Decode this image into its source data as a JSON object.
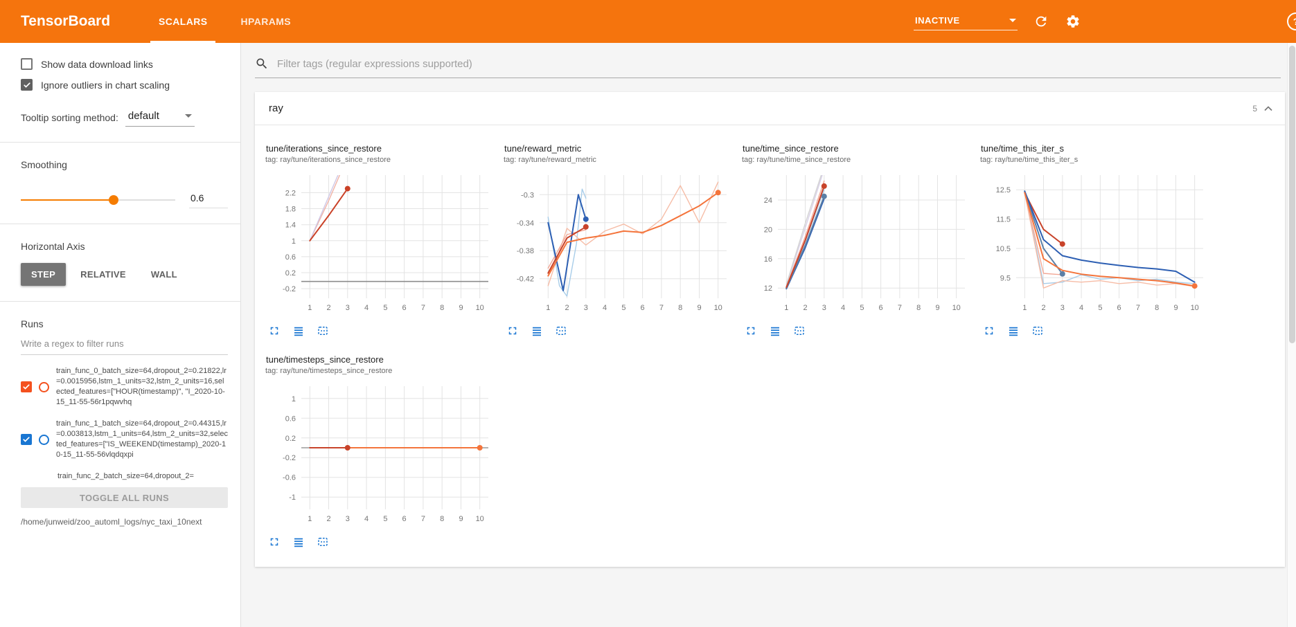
{
  "colors": {
    "header_orange": "#f5740d",
    "accent_blue": "#1976d2",
    "slider_orange": "#f57c00"
  },
  "header": {
    "title": "TensorBoard",
    "tabs": [
      {
        "label": "SCALARS",
        "active": true
      },
      {
        "label": "HPARAMS",
        "active": false
      }
    ],
    "reload_mode": "INACTIVE",
    "help_glyph": "?"
  },
  "sidebar": {
    "show_download_links": {
      "label": "Show data download links",
      "checked": false
    },
    "ignore_outliers": {
      "label": "Ignore outliers in chart scaling",
      "checked": true
    },
    "tooltip_sorting": {
      "label": "Tooltip sorting method:",
      "value": "default"
    },
    "smoothing": {
      "label": "Smoothing",
      "value": "0.6",
      "percent": 60
    },
    "horizontal_axis": {
      "label": "Horizontal Axis",
      "options": [
        {
          "label": "STEP",
          "selected": true
        },
        {
          "label": "RELATIVE",
          "selected": false
        },
        {
          "label": "WALL",
          "selected": false
        }
      ]
    },
    "runs": {
      "label": "Runs",
      "filter_placeholder": "Write a regex to filter runs",
      "items": [
        {
          "label": "train_func_0_batch_size=64,dropout_2=0.21822,lr=0.0015956,lstm_1_units=32,lstm_2_units=16,selected_features=[\"HOUR(timestamp)\", \"I_2020-10-15_11-55-56r1pqwvhq",
          "checked": true,
          "color": "#f4511e",
          "partial": false
        },
        {
          "label": "train_func_1_batch_size=64,dropout_2=0.44315,lr=0.003813,lstm_1_units=64,lstm_2_units=32,selected_features=[\"IS_WEEKEND(timestamp)_2020-10-15_11-55-56vlqdqxpi",
          "checked": true,
          "color": "#1976d2",
          "partial": false
        },
        {
          "label": "train_func_2_batch_size=64,dropout_2=",
          "checked": false,
          "color": "#9e9e9e",
          "partial": true
        }
      ],
      "toggle_all_label": "TOGGLE ALL RUNS",
      "log_dir": "/home/junweid/zoo_automl_logs/nyc_taxi_10next"
    }
  },
  "main": {
    "filter_placeholder": "Filter tags (regular expressions supported)",
    "group": {
      "name": "ray",
      "count": "5"
    }
  },
  "chart_data": [
    {
      "type": "line",
      "title": "tune/iterations_since_restore",
      "tag": "tag: ray/tune/iterations_since_restore",
      "xlim": [
        0.55,
        10.45
      ],
      "ylim": [
        -0.44,
        2.64
      ],
      "xticks": [
        1,
        2,
        3,
        4,
        5,
        6,
        7,
        8,
        9,
        10
      ],
      "yticks": [
        -0.2,
        0.2,
        0.6,
        1,
        1.4,
        1.8,
        2.2
      ],
      "series": [
        {
          "name": "flat-gray-run",
          "color": "#8c8c8c",
          "width": 1.6,
          "points": [
            [
              0.55,
              -0.02
            ],
            [
              10.45,
              -0.02
            ]
          ]
        },
        {
          "name": "raw-red",
          "color": "#f0b3a6",
          "width": 1.4,
          "points": [
            [
              1,
              1
            ],
            [
              2,
              2
            ],
            [
              3,
              3.1
            ]
          ]
        },
        {
          "name": "raw-lavender",
          "color": "#cfc8e6",
          "width": 1.4,
          "points": [
            [
              1,
              1
            ],
            [
              2,
              2.1
            ],
            [
              3,
              3.2
            ]
          ]
        },
        {
          "name": "smoothed-red",
          "color": "#ca4127",
          "width": 2,
          "points": [
            [
              1,
              1
            ],
            [
              2,
              1.63
            ],
            [
              3,
              2.3
            ]
          ],
          "dot": true
        }
      ]
    },
    {
      "type": "line",
      "title": "tune/reward_metric",
      "tag": "tag: ray/tune/reward_metric",
      "xlim": [
        0.55,
        10.45
      ],
      "ylim": [
        -0.448,
        -0.272
      ],
      "xticks": [
        1,
        2,
        3,
        4,
        5,
        6,
        7,
        8,
        9,
        10
      ],
      "yticks": [
        -0.42,
        -0.38,
        -0.34,
        -0.3
      ],
      "series": [
        {
          "name": "raw-blue",
          "color": "#a8cde9",
          "width": 1.4,
          "points": [
            [
              1,
              -0.332
            ],
            [
              1.6,
              -0.43
            ],
            [
              2,
              -0.445
            ],
            [
              2.5,
              -0.37
            ],
            [
              2.8,
              -0.292
            ],
            [
              3,
              -0.305
            ]
          ]
        },
        {
          "name": "raw-orange",
          "color": "#f6bca6",
          "width": 1.4,
          "points": [
            [
              1,
              -0.43
            ],
            [
              2,
              -0.348
            ],
            [
              3,
              -0.372
            ],
            [
              4,
              -0.352
            ],
            [
              5,
              -0.342
            ],
            [
              6,
              -0.356
            ],
            [
              7,
              -0.335
            ],
            [
              8,
              -0.287
            ],
            [
              9,
              -0.34
            ],
            [
              10,
              -0.282
            ]
          ]
        },
        {
          "name": "raw-red",
          "color": "#f2a795",
          "width": 1.4,
          "points": [
            [
              1,
              -0.405
            ],
            [
              2,
              -0.357
            ],
            [
              3,
              -0.35
            ]
          ]
        },
        {
          "name": "smoothed-blue",
          "color": "#2d5fb3",
          "width": 2,
          "points": [
            [
              1,
              -0.34
            ],
            [
              1.8,
              -0.437
            ],
            [
              2.6,
              -0.3
            ],
            [
              3,
              -0.335
            ]
          ],
          "dot": true
        },
        {
          "name": "smoothed-red",
          "color": "#c8432a",
          "width": 2,
          "points": [
            [
              1,
              -0.412
            ],
            [
              2,
              -0.362
            ],
            [
              3,
              -0.346
            ]
          ],
          "dot": true
        },
        {
          "name": "smoothed-orange",
          "color": "#f4743b",
          "width": 2,
          "points": [
            [
              1,
              -0.416
            ],
            [
              2,
              -0.368
            ],
            [
              3,
              -0.362
            ],
            [
              4,
              -0.358
            ],
            [
              5,
              -0.352
            ],
            [
              6,
              -0.354
            ],
            [
              7,
              -0.344
            ],
            [
              8,
              -0.33
            ],
            [
              9,
              -0.316
            ],
            [
              10,
              -0.297
            ]
          ],
          "dot": true
        }
      ]
    },
    {
      "type": "line",
      "title": "tune/time_since_restore",
      "tag": "tag: ray/tune/time_since_restore",
      "xlim": [
        0.55,
        10.45
      ],
      "ylim": [
        10.6,
        27.4
      ],
      "xticks": [
        1,
        2,
        3,
        4,
        5,
        6,
        7,
        8,
        9,
        10
      ],
      "yticks": [
        12,
        16,
        20,
        24
      ],
      "series": [
        {
          "name": "raw-lavender",
          "color": "#d8d0e8",
          "width": 1.4,
          "points": [
            [
              1,
              12.3
            ],
            [
              2,
              20.2
            ],
            [
              3,
              28.2
            ]
          ]
        },
        {
          "name": "raw-gray",
          "color": "#d2d2d2",
          "width": 1.4,
          "points": [
            [
              1,
              12.5
            ],
            [
              2,
              20.8
            ],
            [
              3,
              28.6
            ]
          ]
        },
        {
          "name": "raw-red",
          "color": "#f2a795",
          "width": 1.4,
          "points": [
            [
              1,
              12.2
            ],
            [
              2,
              19.0
            ],
            [
              3,
              26.6
            ]
          ]
        },
        {
          "name": "raw-blue",
          "color": "#a8cde9",
          "width": 1.4,
          "points": [
            [
              1,
              12.0
            ],
            [
              2,
              18.3
            ],
            [
              3,
              25.4
            ]
          ]
        },
        {
          "name": "smoothed-blue",
          "color": "#2d5fb3",
          "width": 2,
          "points": [
            [
              1,
              11.9
            ],
            [
              2,
              17.5
            ],
            [
              3,
              24.2
            ]
          ]
        },
        {
          "name": "smoothed-steel",
          "color": "#5b7fa6",
          "width": 2,
          "points": [
            [
              1,
              12.0
            ],
            [
              2,
              17.8
            ],
            [
              3,
              24.5
            ]
          ],
          "dot": true
        },
        {
          "name": "smoothed-red",
          "color": "#c8432a",
          "width": 2,
          "points": [
            [
              1,
              12.1
            ],
            [
              2,
              18.5
            ],
            [
              3,
              25.9
            ]
          ],
          "dot": true
        }
      ]
    },
    {
      "type": "line",
      "title": "tune/time_this_iter_s",
      "tag": "tag: ray/tune/time_this_iter_s",
      "xlim": [
        0.55,
        10.45
      ],
      "ylim": [
        8.8,
        13.0
      ],
      "xticks": [
        1,
        2,
        3,
        4,
        5,
        6,
        7,
        8,
        9,
        10
      ],
      "yticks": [
        9.5,
        10.5,
        11.5,
        12.5
      ],
      "series": [
        {
          "name": "raw-blue",
          "color": "#a8cde9",
          "width": 1.4,
          "points": [
            [
              1,
              12.45
            ],
            [
              2,
              9.3
            ],
            [
              3,
              9.35
            ],
            [
              4,
              9.6
            ],
            [
              5,
              9.45
            ],
            [
              6,
              9.5
            ],
            [
              7,
              9.4
            ],
            [
              8,
              9.45
            ],
            [
              9,
              9.35
            ],
            [
              10,
              9.3
            ]
          ]
        },
        {
          "name": "raw-orange",
          "color": "#f6bca6",
          "width": 1.4,
          "points": [
            [
              1,
              12.4
            ],
            [
              2,
              9.15
            ],
            [
              3,
              9.4
            ],
            [
              4,
              9.35
            ],
            [
              5,
              9.4
            ],
            [
              6,
              9.3
            ],
            [
              7,
              9.35
            ],
            [
              8,
              9.25
            ],
            [
              9,
              9.3
            ],
            [
              10,
              9.2
            ]
          ]
        },
        {
          "name": "raw-red",
          "color": "#f2a795",
          "width": 1.4,
          "points": [
            [
              1,
              12.4
            ],
            [
              2,
              9.65
            ],
            [
              3,
              9.6
            ]
          ]
        },
        {
          "name": "smoothed-red",
          "color": "#c8432a",
          "width": 2,
          "points": [
            [
              1,
              12.4
            ],
            [
              2,
              11.15
            ],
            [
              3,
              10.65
            ]
          ],
          "dot": true
        },
        {
          "name": "smoothed-steel",
          "color": "#5b7fa6",
          "width": 2,
          "points": [
            [
              1,
              12.45
            ],
            [
              2,
              10.5
            ],
            [
              3,
              9.63
            ]
          ],
          "dot": true
        },
        {
          "name": "smoothed-blue",
          "color": "#2d5fb3",
          "width": 2,
          "points": [
            [
              1,
              12.45
            ],
            [
              2,
              10.8
            ],
            [
              3,
              10.25
            ],
            [
              4,
              10.1
            ],
            [
              5,
              10.0
            ],
            [
              6,
              9.92
            ],
            [
              7,
              9.85
            ],
            [
              8,
              9.8
            ],
            [
              9,
              9.72
            ],
            [
              10,
              9.35
            ]
          ]
        },
        {
          "name": "smoothed-orange",
          "color": "#f4743b",
          "width": 2,
          "points": [
            [
              1,
              12.4
            ],
            [
              2,
              10.15
            ],
            [
              3,
              9.75
            ],
            [
              4,
              9.62
            ],
            [
              5,
              9.55
            ],
            [
              6,
              9.5
            ],
            [
              7,
              9.45
            ],
            [
              8,
              9.4
            ],
            [
              9,
              9.32
            ],
            [
              10,
              9.22
            ]
          ],
          "dot": true
        }
      ]
    },
    {
      "type": "line",
      "title": "tune/timesteps_since_restore",
      "tag": "tag: ray/tune/timesteps_since_restore",
      "xlim": [
        0.55,
        10.45
      ],
      "ylim": [
        -1.25,
        1.25
      ],
      "xticks": [
        1,
        2,
        3,
        4,
        5,
        6,
        7,
        8,
        9,
        10
      ],
      "yticks": [
        -1,
        -0.6,
        -0.2,
        0.2,
        0.6,
        1
      ],
      "series": [
        {
          "name": "flat-gray-run",
          "color": "#9a9a9a",
          "width": 1.6,
          "points": [
            [
              0.55,
              0
            ],
            [
              10.45,
              0
            ]
          ]
        },
        {
          "name": "smoothed-orange",
          "color": "#f4743b",
          "width": 2,
          "points": [
            [
              1,
              0
            ],
            [
              10,
              0
            ]
          ],
          "dot": true
        },
        {
          "name": "smoothed-red",
          "color": "#c8432a",
          "width": 2,
          "points": [
            [
              1,
              0
            ],
            [
              3,
              0
            ]
          ],
          "dot": true
        }
      ]
    }
  ]
}
